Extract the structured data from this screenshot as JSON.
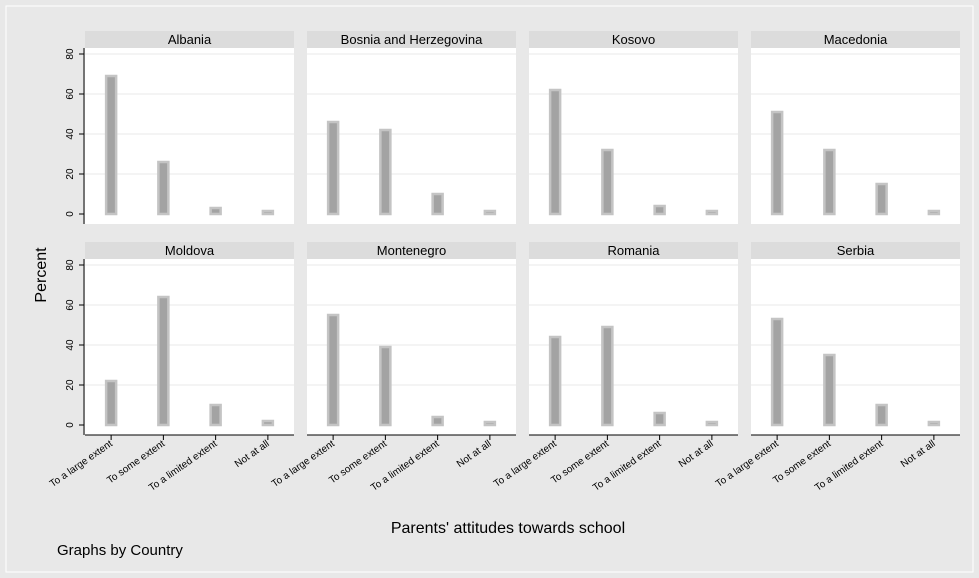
{
  "chart_data": {
    "type": "bar",
    "xlabel": "Parents' attitudes towards school",
    "ylabel": "Percent",
    "note": "Graphs by Country",
    "categories": [
      "To a large extent",
      "To some extent",
      "To a limited extent",
      "Not at all"
    ],
    "ylim": [
      0,
      80
    ],
    "yticks": [
      0,
      20,
      40,
      60,
      80
    ],
    "grid": true,
    "colors": {
      "background": "#e8e8e8",
      "panel": "#ffffff",
      "strip": "#dcdcdc",
      "bar_fill": "#a3a3a3",
      "bar_outline": "#c4c4c4",
      "grid": "#eaeaea",
      "text": "#000000"
    },
    "panels": [
      {
        "country": "Albania",
        "values": [
          69,
          26,
          3,
          0.5
        ]
      },
      {
        "country": "Bosnia and Herzegovina",
        "values": [
          46,
          42,
          10,
          1
        ]
      },
      {
        "country": "Kosovo",
        "values": [
          62,
          32,
          4,
          0.5
        ]
      },
      {
        "country": "Macedonia",
        "values": [
          51,
          32,
          15,
          0
        ]
      },
      {
        "country": "Moldova",
        "values": [
          22,
          64,
          10,
          2
        ]
      },
      {
        "country": "Montenegro",
        "values": [
          55,
          39,
          4,
          1
        ]
      },
      {
        "country": "Romania",
        "values": [
          44,
          49,
          6,
          0.5
        ]
      },
      {
        "country": "Serbia",
        "values": [
          53,
          35,
          10,
          1
        ]
      }
    ]
  }
}
